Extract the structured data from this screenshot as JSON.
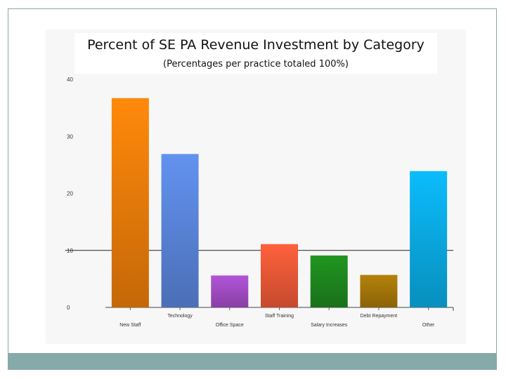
{
  "chart_data": {
    "type": "bar",
    "title": "Percent of SE PA Revenue Investment by Category",
    "subtitle": "(Percentages per practice totaled 100%)",
    "xlabel": "",
    "ylabel": "",
    "categories": [
      "New Staff",
      "Technology",
      "Office Space",
      "Staff Training",
      "Salary Increases",
      "Debt Repayment",
      "Other"
    ],
    "values": [
      36.7,
      26.9,
      5.6,
      11.1,
      9.1,
      5.7,
      23.9
    ],
    "ylim": [
      0,
      40
    ],
    "yticks": [
      "0",
      "10",
      "20",
      "30",
      "40"
    ],
    "grid": "horizontal line at 10",
    "colors": [
      "#f07f0a",
      "#5b87de",
      "#a64ec8",
      "#f25a38",
      "#1e8a1e",
      "#a8780a",
      "#0aaee8"
    ]
  }
}
